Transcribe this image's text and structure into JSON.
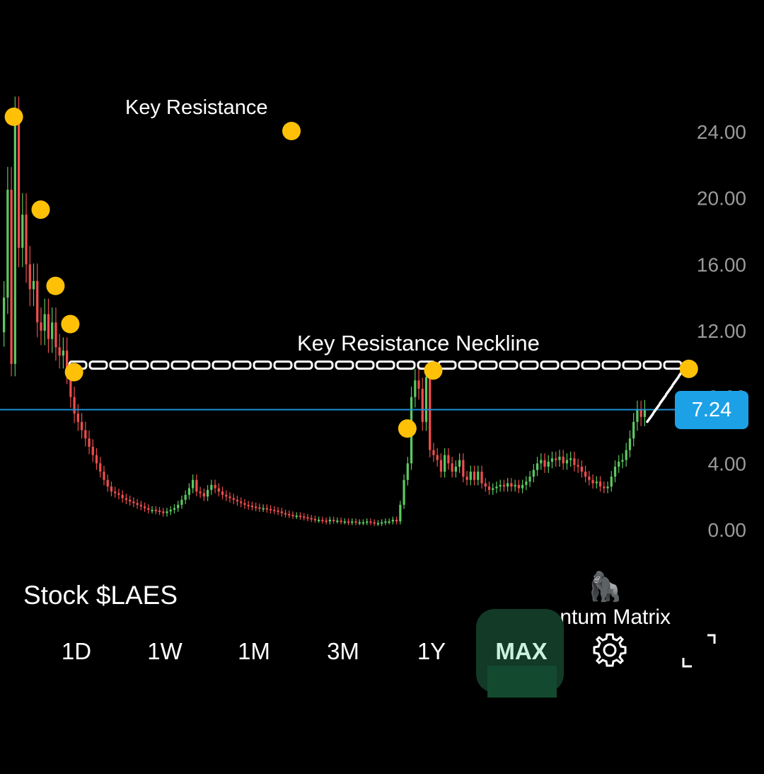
{
  "chart_data": {
    "type": "candlestick",
    "ylim": [
      0,
      26
    ],
    "y_ticks": [
      "24.00",
      "20.00",
      "16.00",
      "12.00",
      "8.00",
      "4.00",
      "0.00"
    ],
    "y_tick_values": [
      24,
      20,
      16,
      12,
      8,
      4,
      0
    ],
    "current_price": 7.24,
    "current_price_label": "7.24",
    "neckline_level": 9.2,
    "colors": {
      "up": "#5cc860",
      "down": "#ef4d4d",
      "price_line": "#1e90d8",
      "marker": "#ffc107",
      "background": "#000000"
    },
    "candles_close": [
      14.0,
      20.5,
      10.0,
      24.5,
      17.0,
      19.0,
      16.0,
      14.5,
      15.0,
      12.5,
      12.0,
      13.0,
      11.5,
      12.5,
      11.0,
      10.5,
      10.8,
      9.5,
      8.0,
      7.0,
      6.5,
      6.0,
      5.5,
      5.0,
      4.5,
      4.0,
      3.5,
      3.0,
      2.6,
      2.3,
      2.2,
      2.1,
      1.9,
      1.8,
      1.7,
      1.6,
      1.5,
      1.4,
      1.3,
      1.2,
      1.2,
      1.15,
      1.1,
      1.0,
      1.1,
      1.2,
      1.3,
      1.5,
      1.8,
      2.1,
      2.5,
      3.0,
      2.3,
      2.2,
      2.0,
      2.4,
      2.7,
      2.5,
      2.3,
      2.1,
      2.0,
      1.9,
      1.8,
      1.7,
      1.6,
      1.5,
      1.45,
      1.4,
      1.35,
      1.3,
      1.3,
      1.25,
      1.2,
      1.15,
      1.1,
      1.0,
      0.95,
      0.9,
      0.85,
      0.85,
      0.8,
      0.75,
      0.7,
      0.65,
      0.6,
      0.6,
      0.55,
      0.5,
      0.6,
      0.55,
      0.55,
      0.5,
      0.5,
      0.45,
      0.5,
      0.45,
      0.45,
      0.45,
      0.5,
      0.45,
      0.4,
      0.4,
      0.45,
      0.5,
      0.5,
      0.6,
      0.5,
      1.5,
      3.0,
      4.0,
      8.0,
      9.0,
      8.5,
      6.5,
      9.2,
      4.8,
      4.5,
      4.2,
      3.5,
      4.5,
      4.0,
      3.5,
      3.8,
      4.2,
      3.2,
      3.0,
      3.5,
      3.0,
      3.5,
      2.8,
      2.6,
      2.4,
      2.5,
      2.6,
      2.7,
      2.6,
      2.8,
      2.6,
      2.7,
      2.5,
      2.7,
      2.9,
      3.2,
      3.6,
      4.0,
      4.2,
      3.8,
      4.1,
      4.3,
      4.2,
      4.4,
      4.0,
      4.2,
      4.3,
      3.9,
      3.8,
      3.5,
      3.2,
      3.0,
      2.8,
      2.9,
      2.6,
      2.5,
      2.6,
      3.2,
      3.8,
      4.1,
      4.2,
      4.8,
      5.5,
      6.5,
      7.2,
      6.8,
      7.24
    ],
    "markers_index": [
      0,
      8,
      12,
      16,
      17,
      107,
      114,
      183
    ],
    "markers_offset_y": [
      24.9,
      19.3,
      14.7,
      12.4,
      9.5,
      6.1,
      9.6,
      9.7
    ],
    "marker_key_resistance": 24.0
  },
  "annotations": {
    "key_resistance": "Key Resistance",
    "neckline": "Key Resistance Neckline"
  },
  "footer": {
    "stock_label": "Stock $LAES",
    "brand_icon": "🦍",
    "brand_text": "Momentum Matrix"
  },
  "tabs": [
    {
      "label": "1D"
    },
    {
      "label": "1W"
    },
    {
      "label": "1M"
    },
    {
      "label": "3M"
    },
    {
      "label": "1Y"
    },
    {
      "label": "MAX",
      "active": true
    }
  ],
  "icons": {
    "settings": "gear-icon",
    "fullscreen": "fullscreen-icon"
  }
}
